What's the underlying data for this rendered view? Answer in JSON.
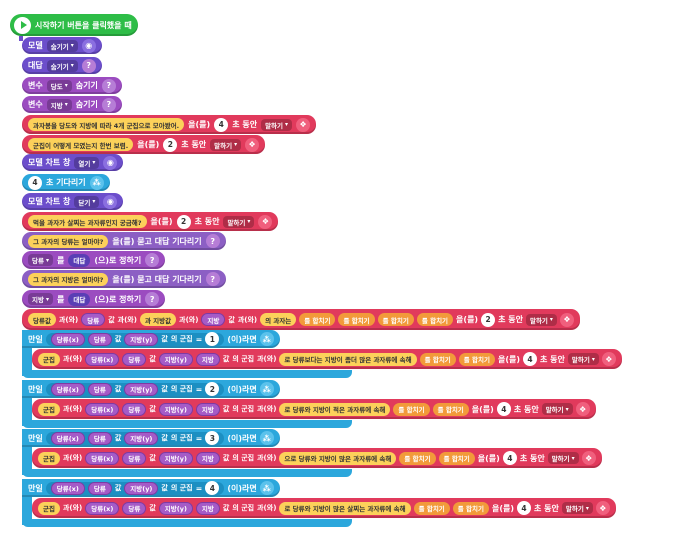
{
  "start": {
    "label": "시작하기 버튼을 클릭했을 때"
  },
  "rows": {
    "r1": {
      "label": "모델",
      "dd": "숨기기"
    },
    "r2": {
      "label": "대답",
      "dd": "숨기기"
    },
    "r3": {
      "label": "변수",
      "dd": "당도",
      "tail": "숨기기"
    },
    "r4": {
      "label": "변수",
      "dd": "지방",
      "tail": "숨기기"
    },
    "r5": {
      "text": "과자봉을 당도와 지방에 따라 4개 군집으로 모아봤어.",
      "mid": "을(를)",
      "num": "4",
      "unit": "초 동안",
      "dd": "말하기"
    },
    "r6": {
      "text": "군집이 어떻게 모였는지 한번 보렴.",
      "mid": "을(를)",
      "num": "2",
      "unit": "초 동안",
      "dd": "말하기"
    },
    "r7": {
      "label": "모델 차트 창",
      "dd": "열기"
    },
    "r8": {
      "num": "4",
      "label": "초 기다리기"
    },
    "r9": {
      "label": "모델 차트 창",
      "dd": "닫기"
    },
    "r10": {
      "text": "먹을 과자가 살찌는 과자류인지 궁금해?",
      "mid": "을(를)",
      "num": "2",
      "unit": "초 동안",
      "dd": "말하기"
    },
    "r11": {
      "text": "그 과자의 당류는 얼마야?",
      "tail": "을(를) 묻고 대답 기다리기"
    },
    "r12": {
      "var": "당류",
      "mid": "를",
      "val": "대답",
      "tail": "(으)로 정하기"
    },
    "r13": {
      "text": "그 과자의 지방은 얼마야?",
      "tail": "을(를) 묻고 대답 기다리기"
    },
    "r14": {
      "var": "지방",
      "mid": "를",
      "val": "대답",
      "tail": "(으)로 정하기"
    },
    "r15": {
      "p1": "당류값",
      "p2": "과(와)",
      "p3": "당류",
      "p4": "값",
      "p5": "과(와)",
      "p6": "과 지방값",
      "p7": "과(와)",
      "p8": "지방",
      "p9": "값",
      "p10": "과(와)",
      "p11": "의 과자는",
      "p12": "를 합치기",
      "p13": "를 합치기",
      "p14": "를 합치기",
      "p15": "를 합치기",
      "mid": "을(를)",
      "num": "2",
      "unit": "초 동안",
      "dd": "말하기"
    }
  },
  "if_blocks": [
    {
      "label": "만일",
      "v1": "당류(x)",
      "v2": "당류",
      "v3": "값",
      "v4": "지방(y)",
      "v5": "값",
      "cluster": "의 군집",
      "op": "=",
      "num": "1",
      "then": "(이)라면",
      "say": {
        "head": "군집",
        "and": "과(와)",
        "v1": "당류(x)",
        "v2": "당류",
        "v3": "값",
        "v4": "지방(y)",
        "v5": "지방",
        "v6": "값",
        "cluster": "의 군집",
        "and2": "과(와)",
        "text": "로 당류보다는 지방이 좀더 많은 과자류에 속해",
        "join1": "를 합치기",
        "join2": "를 합치기",
        "mid": "을(를)",
        "num": "4",
        "unit": "초 동안",
        "dd": "말하기"
      }
    },
    {
      "label": "만일",
      "v1": "당류(x)",
      "v2": "당류",
      "v3": "값",
      "v4": "지방(y)",
      "v5": "값",
      "cluster": "의 군집",
      "op": "=",
      "num": "2",
      "then": "(이)라면",
      "say": {
        "head": "군집",
        "and": "과(와)",
        "v1": "당류(x)",
        "v2": "당류",
        "v3": "값",
        "v4": "지방(y)",
        "v5": "지방",
        "v6": "값",
        "cluster": "의 군집",
        "and2": "과(와)",
        "text": "로 당류와 지방이 적은 과자류에 속해",
        "join1": "를 합치기",
        "join2": "를 합치기",
        "mid": "을(를)",
        "num": "4",
        "unit": "초 동안",
        "dd": "말하기"
      }
    },
    {
      "label": "만일",
      "v1": "당류(x)",
      "v2": "당류",
      "v3": "값",
      "v4": "지방(y)",
      "v5": "값",
      "cluster": "의 군집",
      "op": "=",
      "num": "3",
      "then": "(이)라면",
      "say": {
        "head": "군집",
        "and": "과(와)",
        "v1": "당류(x)",
        "v2": "당류",
        "v3": "값",
        "v4": "지방(y)",
        "v5": "지방",
        "v6": "값",
        "cluster": "의 군집",
        "and2": "과(와)",
        "text": "으로 당류와 지방이 많은 과자류에 속해",
        "join1": "를 합치기",
        "join2": "를 합치기",
        "mid": "을(를)",
        "num": "4",
        "unit": "초 동안",
        "dd": "말하기"
      }
    },
    {
      "label": "만일",
      "v1": "당류(x)",
      "v2": "당류",
      "v3": "값",
      "v4": "지방(y)",
      "v5": "값",
      "cluster": "의 군집",
      "op": "=",
      "num": "4",
      "then": "(이)라면",
      "say": {
        "head": "군집",
        "and": "과(와)",
        "v1": "당류(x)",
        "v2": "당류",
        "v3": "값",
        "v4": "지방(y)",
        "v5": "지방",
        "v6": "값",
        "cluster": "의 군집",
        "and2": "과(와)",
        "text": "로 당류와 지방이 많은 살찌는 과자류에 속해",
        "join1": "를 합치기",
        "join2": "를 합치기",
        "mid": "을(를)",
        "num": "4",
        "unit": "초 동안",
        "dd": "말하기"
      }
    }
  ]
}
